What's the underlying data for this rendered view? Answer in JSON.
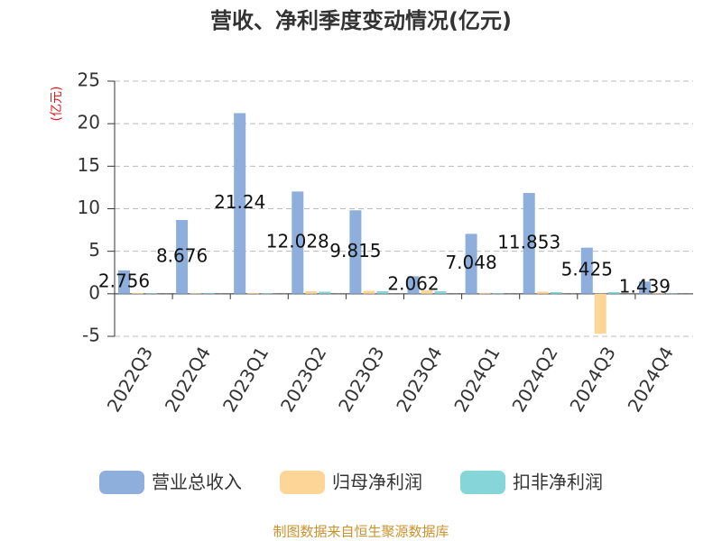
{
  "chart_data": {
    "type": "bar",
    "title": "营收、净利季度变动情况(亿元)",
    "y_label": "(亿元)",
    "categories": [
      "2022Q3",
      "2022Q4",
      "2023Q1",
      "2023Q2",
      "2023Q3",
      "2023Q4",
      "2024Q1",
      "2024Q2",
      "2024Q3",
      "2024Q4"
    ],
    "series": [
      {
        "name": "营业总收入",
        "color": "#8eaedc",
        "show_labels": true,
        "values": [
          2.756,
          8.676,
          21.24,
          12.028,
          9.815,
          2.062,
          7.048,
          11.853,
          5.425,
          1.439
        ]
      },
      {
        "name": "归母净利润",
        "color": "#fcd597",
        "values": [
          0.1,
          0.05,
          0.1,
          0.3,
          0.35,
          0.4,
          0.1,
          0.25,
          -4.7,
          0.05
        ]
      },
      {
        "name": "扣非净利润",
        "color": "#86d5d8",
        "values": [
          0.05,
          0.1,
          0.05,
          0.25,
          0.3,
          0.3,
          0.05,
          0.2,
          0.2,
          0.03
        ]
      }
    ],
    "ylim": [
      -5,
      25
    ],
    "yticks": [
      -5,
      0,
      5,
      10,
      15,
      20,
      25
    ],
    "grid": true,
    "legend": "bottom",
    "source": "制图数据来自恒生聚源数据库"
  }
}
